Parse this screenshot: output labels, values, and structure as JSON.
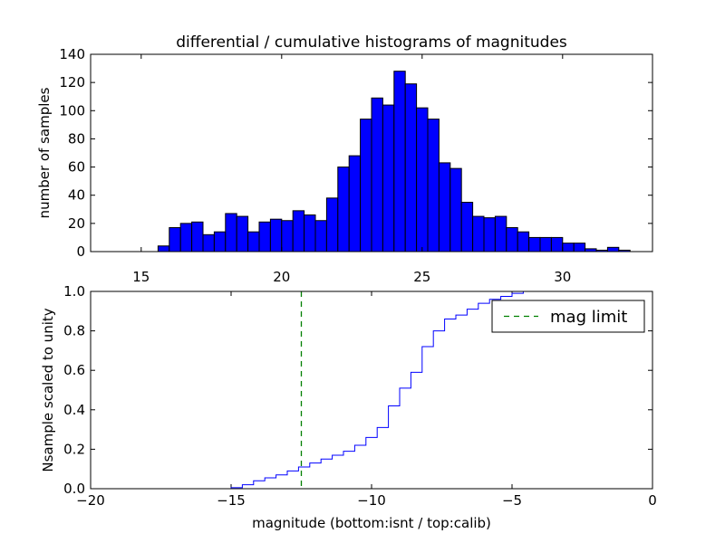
{
  "chart_data": [
    {
      "type": "bar",
      "panel": "top",
      "title": "differential / cumulative histograms of magnitudes",
      "xlabel": "",
      "ylabel": "number of samples",
      "xlim": [
        13.2,
        33.2
      ],
      "ylim": [
        0,
        140
      ],
      "bin_start": 15.6,
      "bin_width": 0.4,
      "values": [
        4,
        17,
        20,
        21,
        12,
        14,
        27,
        25,
        14,
        21,
        23,
        22,
        29,
        26,
        22,
        38,
        60,
        68,
        94,
        109,
        104,
        128,
        119,
        102,
        94,
        63,
        59,
        35,
        25,
        24,
        25,
        17,
        14,
        10,
        10,
        10,
        6,
        6,
        2,
        1,
        3,
        1
      ],
      "xticks": [
        "15",
        "20",
        "25",
        "30"
      ],
      "xtick_values": [
        15,
        20,
        25,
        30
      ],
      "yticks": [
        "0",
        "20",
        "40",
        "60",
        "80",
        "100",
        "120",
        "140"
      ],
      "ytick_values": [
        0,
        20,
        40,
        60,
        80,
        100,
        120,
        140
      ],
      "color": "#0000ff"
    },
    {
      "type": "line",
      "panel": "bottom",
      "title": "",
      "xlabel": "magnitude (bottom:isnt / top:calib)",
      "ylabel": "Nsample scaled to unity",
      "xlim": [
        -20,
        0
      ],
      "ylim": [
        0,
        1.0
      ],
      "series_name": "cumulative",
      "x": [
        -16.3,
        -15.0,
        -14.6,
        -14.2,
        -13.8,
        -13.4,
        -13.0,
        -12.6,
        -12.2,
        -11.8,
        -11.4,
        -11.0,
        -10.6,
        -10.2,
        -9.8,
        -9.4,
        -9.0,
        -8.6,
        -8.2,
        -7.8,
        -7.4,
        -7.0,
        -6.6,
        -6.2,
        -5.8,
        -5.4,
        -5.0,
        -4.6
      ],
      "y": [
        0.0,
        0.005,
        0.02,
        0.04,
        0.055,
        0.07,
        0.09,
        0.11,
        0.13,
        0.15,
        0.17,
        0.19,
        0.22,
        0.26,
        0.31,
        0.42,
        0.51,
        0.59,
        0.72,
        0.8,
        0.86,
        0.88,
        0.91,
        0.94,
        0.96,
        0.975,
        0.99,
        1.0
      ],
      "mag_limit_x": -12.5,
      "legend": "mag limit",
      "legend_position": "top-right",
      "xticks": [
        "−20",
        "−15",
        "−10",
        "−5",
        "0"
      ],
      "xtick_values": [
        -20,
        -15,
        -10,
        -5,
        0
      ],
      "yticks": [
        "0.0",
        "0.2",
        "0.4",
        "0.6",
        "0.8",
        "1.0"
      ],
      "ytick_values": [
        0,
        0.2,
        0.4,
        0.6,
        0.8,
        1.0
      ],
      "line_color": "#0000ff",
      "limit_color": "#008000"
    }
  ]
}
